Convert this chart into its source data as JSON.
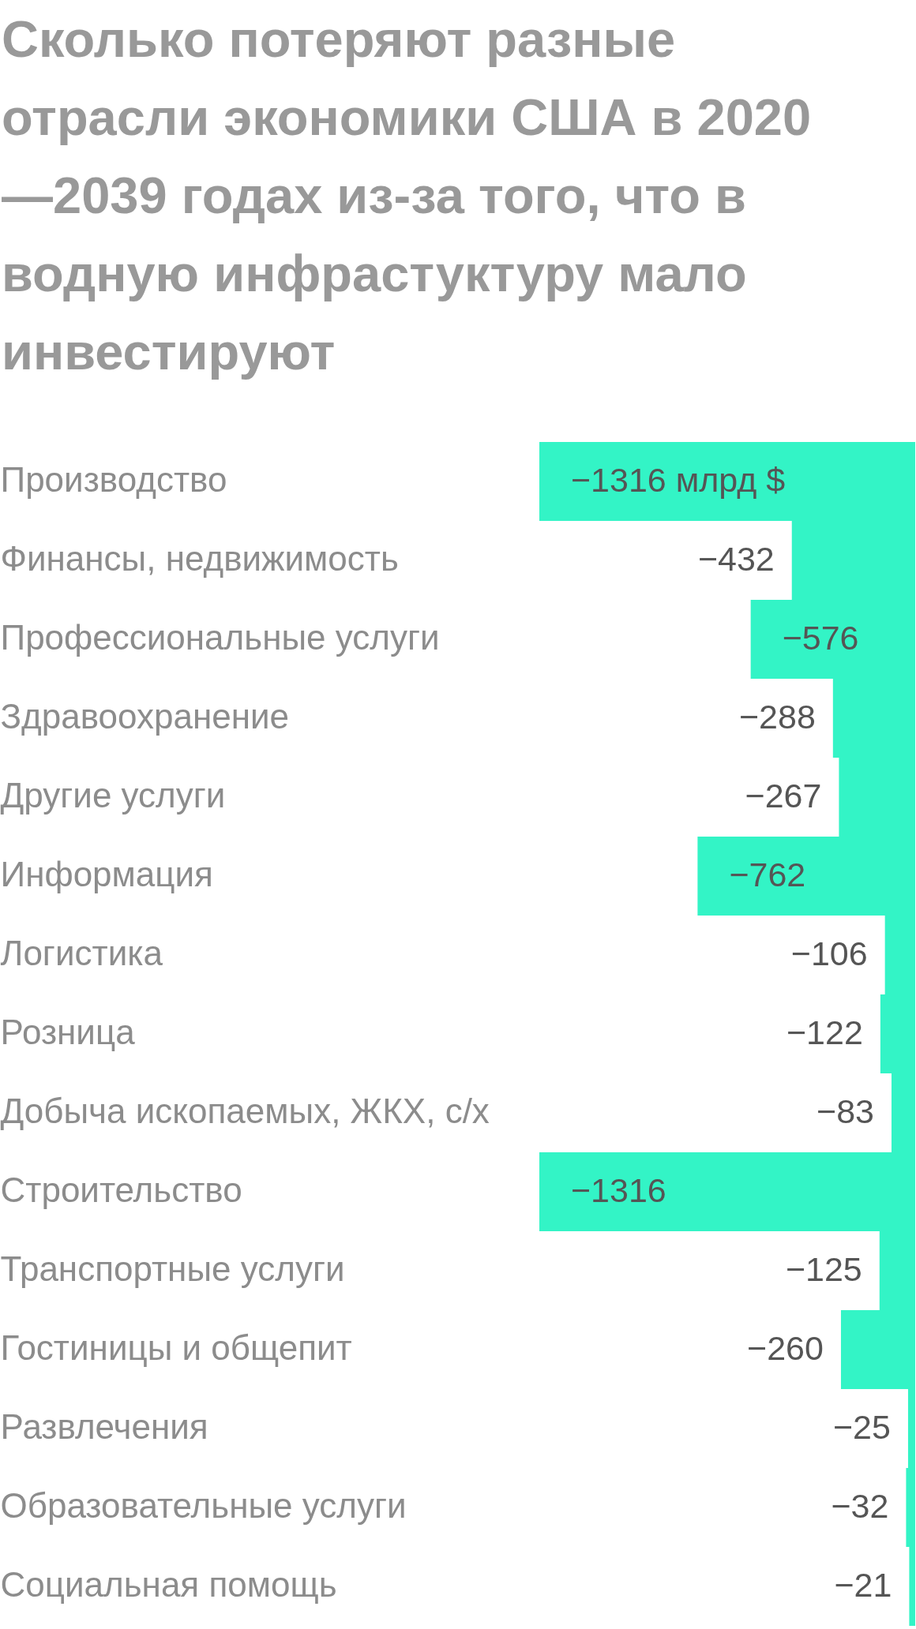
{
  "chart_data": {
    "type": "bar",
    "orientation": "horizontal",
    "title": "Сколько потеряют разные отрасли экономики США в 2020—2039 годах из-за того, что в водную инфрастуктуру мало инвестируют",
    "categories": [
      "Производство",
      "Финансы, недвижимость",
      "Профессиональные услуги",
      "Здравоохранение",
      "Другие услуги",
      "Информация",
      "Логистика",
      "Розница",
      "Добыча ископаемых, ЖКХ, с/х",
      "Строительство",
      "Транспортные услуги",
      "Гостиницы и общепит",
      "Развлечения",
      "Образовательные услуги",
      "Социальная помощь"
    ],
    "values": [
      -1316,
      -432,
      -576,
      -288,
      -267,
      -762,
      -106,
      -122,
      -83,
      -1316,
      -125,
      -260,
      -25,
      -32,
      -21
    ],
    "value_labels": [
      "−1316 млрд $",
      "−432",
      "−576",
      "−288",
      "−267",
      "−762",
      "−106",
      "−122",
      "−83",
      "−1316",
      "−125",
      "−260",
      "−25",
      "−32",
      "−21"
    ],
    "color": "#33f4c6",
    "xlim": [
      -1316,
      0
    ],
    "tick_labels": "y"
  }
}
